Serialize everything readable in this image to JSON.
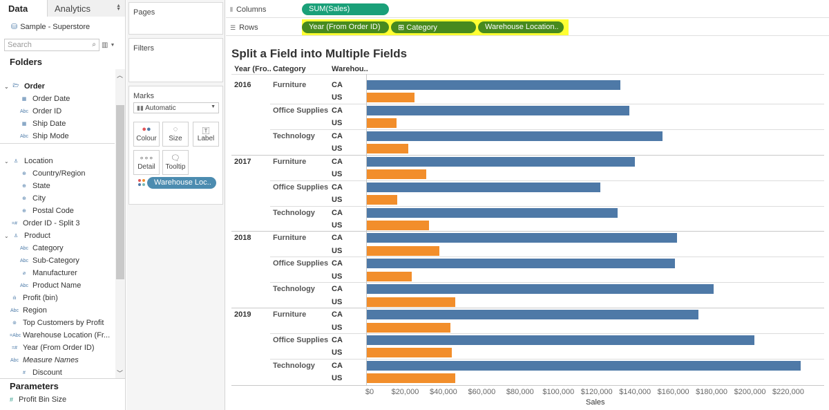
{
  "data_pane": {
    "tabs": {
      "data": "Data",
      "analytics": "Analytics"
    },
    "datasource": "Sample - Superstore",
    "search_placeholder": "Search",
    "folders_heading": "Folders",
    "fields": [
      {
        "label": "Order",
        "icon": "folder-open",
        "group": true
      },
      {
        "label": "Order Date",
        "icon": "calendar"
      },
      {
        "label": "Order ID",
        "icon": "abc"
      },
      {
        "label": "Ship Date",
        "icon": "calendar"
      },
      {
        "label": "Ship Mode",
        "icon": "abc"
      },
      {
        "label": "Location",
        "icon": "hierarchy",
        "group": true
      },
      {
        "label": "Country/Region",
        "icon": "globe"
      },
      {
        "label": "State",
        "icon": "globe"
      },
      {
        "label": "City",
        "icon": "globe"
      },
      {
        "label": "Postal Code",
        "icon": "globe"
      },
      {
        "label": "Order ID - Split 3",
        "icon": "number-calc"
      },
      {
        "label": "Product",
        "icon": "hierarchy",
        "group": true
      },
      {
        "label": "Category",
        "icon": "abc"
      },
      {
        "label": "Sub-Category",
        "icon": "abc"
      },
      {
        "label": "Manufacturer",
        "icon": "paperclip"
      },
      {
        "label": "Product Name",
        "icon": "abc"
      },
      {
        "label": "Profit (bin)",
        "icon": "bin"
      },
      {
        "label": "Region",
        "icon": "abc"
      },
      {
        "label": "Top Customers by Profit",
        "icon": "set"
      },
      {
        "label": "Warehouse Location (Fr...",
        "icon": "abc-calc"
      },
      {
        "label": "Year (From Order ID)",
        "icon": "number-calc"
      },
      {
        "label": "Measure Names",
        "icon": "abc"
      },
      {
        "label": "Discount",
        "icon": "number"
      }
    ],
    "parameters_heading": "Parameters",
    "parameters": [
      "Profit Bin Size"
    ]
  },
  "cards": {
    "pages": "Pages",
    "filters": "Filters",
    "marks": "Marks",
    "mark_type": "Automatic",
    "mark_buttons": {
      "colour": "Colour",
      "size": "Size",
      "label": "Label",
      "detail": "Detail",
      "tooltip": "Tooltip"
    },
    "colour_pill": "Warehouse Loc.."
  },
  "shelves": {
    "columns_label": "Columns",
    "rows_label": "Rows",
    "columns_pills": [
      "SUM(Sales)"
    ],
    "rows_pills": [
      "Year (From Order ID)",
      "Category",
      "Warehouse Location.."
    ],
    "rows_highlight": "#ffff33"
  },
  "chart_data": {
    "type": "bar",
    "orientation": "horizontal",
    "title": "Split a Field into Multiple Fields",
    "row_headers": [
      "Year (Fro..",
      "Category",
      "Warehou.."
    ],
    "xlabel": "Sales",
    "xlim": [
      0,
      234000
    ],
    "x_ticks": [
      0,
      20000,
      40000,
      60000,
      80000,
      100000,
      120000,
      140000,
      160000,
      180000,
      200000,
      220000
    ],
    "x_tick_labels": [
      "$0",
      "$20,000",
      "$40,000",
      "$60,000",
      "$80,000",
      "$100,000",
      "$120,000",
      "$140,000",
      "$160,000",
      "$180,000",
      "$200,000",
      "$220,000"
    ],
    "colors": {
      "CA": "#4e79a7",
      "US": "#f28e2b"
    },
    "years": [
      {
        "year": "2016",
        "categories": [
          {
            "name": "Furniture",
            "values": {
              "CA": 132500,
              "US": 25000
            }
          },
          {
            "name": "Office Supplies",
            "values": {
              "CA": 137000,
              "US": 15500
            }
          },
          {
            "name": "Technology",
            "values": {
              "CA": 154500,
              "US": 21500
            }
          }
        ]
      },
      {
        "year": "2017",
        "categories": [
          {
            "name": "Furniture",
            "values": {
              "CA": 140000,
              "US": 31000
            }
          },
          {
            "name": "Office Supplies",
            "values": {
              "CA": 122000,
              "US": 16000
            }
          },
          {
            "name": "Technology",
            "values": {
              "CA": 131000,
              "US": 32500
            }
          }
        ]
      },
      {
        "year": "2018",
        "categories": [
          {
            "name": "Furniture",
            "values": {
              "CA": 162000,
              "US": 38000
            }
          },
          {
            "name": "Office Supplies",
            "values": {
              "CA": 161000,
              "US": 23500
            }
          },
          {
            "name": "Technology",
            "values": {
              "CA": 181000,
              "US": 46000
            }
          }
        ]
      },
      {
        "year": "2019",
        "categories": [
          {
            "name": "Furniture",
            "values": {
              "CA": 173000,
              "US": 43500
            }
          },
          {
            "name": "Office Supplies",
            "values": {
              "CA": 202500,
              "US": 44500
            }
          },
          {
            "name": "Technology",
            "values": {
              "CA": 226500,
              "US": 46000
            }
          }
        ]
      }
    ]
  }
}
